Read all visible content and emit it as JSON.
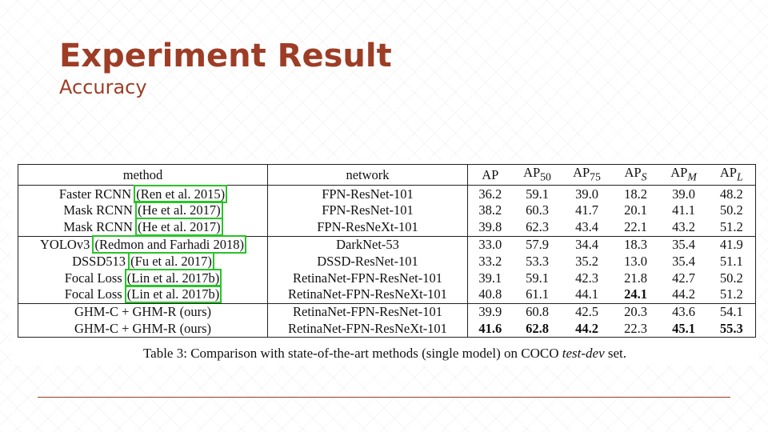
{
  "slide": {
    "title": "Experiment Result",
    "subtitle": "Accuracy"
  },
  "table": {
    "headers": {
      "method": "method",
      "network": "network",
      "ap": "AP",
      "ap50_base": "AP",
      "ap50_sub": "50",
      "ap75_base": "AP",
      "ap75_sub": "75",
      "aps_base": "AP",
      "aps_sub": "S",
      "apm_base": "AP",
      "apm_sub": "M",
      "apl_base": "AP",
      "apl_sub": "L"
    },
    "rows": [
      {
        "method": "Faster RCNN",
        "cite": "Ren et al. 2015",
        "network": "FPN-ResNet-101",
        "ap": "36.2",
        "ap50": "59.1",
        "ap75": "39.0",
        "aps": "18.2",
        "apm": "39.0",
        "apl": "48.2"
      },
      {
        "method": "Mask RCNN",
        "cite": "He et al. 2017",
        "network": "FPN-ResNet-101",
        "ap": "38.2",
        "ap50": "60.3",
        "ap75": "41.7",
        "aps": "20.1",
        "apm": "41.1",
        "apl": "50.2"
      },
      {
        "method": "Mask RCNN",
        "cite": "He et al. 2017",
        "network": "FPN-ResNeXt-101",
        "ap": "39.8",
        "ap50": "62.3",
        "ap75": "43.4",
        "aps": "22.1",
        "apm": "43.2",
        "apl": "51.2"
      },
      {
        "method": "YOLOv3",
        "cite": "Redmon and Farhadi 2018",
        "network": "DarkNet-53",
        "ap": "33.0",
        "ap50": "57.9",
        "ap75": "34.4",
        "aps": "18.3",
        "apm": "35.4",
        "apl": "41.9"
      },
      {
        "method": "DSSD513",
        "cite": "Fu et al. 2017",
        "network": "DSSD-ResNet-101",
        "ap": "33.2",
        "ap50": "53.3",
        "ap75": "35.2",
        "aps": "13.0",
        "apm": "35.4",
        "apl": "51.1"
      },
      {
        "method": "Focal Loss",
        "cite": "Lin et al. 2017b",
        "network": "RetinaNet-FPN-ResNet-101",
        "ap": "39.1",
        "ap50": "59.1",
        "ap75": "42.3",
        "aps": "21.8",
        "apm": "42.7",
        "apl": "50.2"
      },
      {
        "method": "Focal Loss",
        "cite": "Lin et al. 2017b",
        "network": "RetinaNet-FPN-ResNeXt-101",
        "ap": "40.8",
        "ap50": "61.1",
        "ap75": "44.1",
        "aps": "24.1",
        "apm": "44.2",
        "apl": "51.2"
      },
      {
        "method": "GHM-C + GHM-R (ours)",
        "network": "RetinaNet-FPN-ResNet-101",
        "ap": "39.9",
        "ap50": "60.8",
        "ap75": "42.5",
        "aps": "20.3",
        "apm": "43.6",
        "apl": "54.1"
      },
      {
        "method": "GHM-C + GHM-R (ours)",
        "network": "RetinaNet-FPN-ResNeXt-101",
        "ap": "41.6",
        "ap50": "62.8",
        "ap75": "44.2",
        "aps": "22.3",
        "apm": "45.1",
        "apl": "55.3"
      }
    ],
    "caption_prefix": "Table 3: Comparison with state-of-the-art methods (single model) on COCO ",
    "caption_italic": "test-dev",
    "caption_suffix": " set."
  },
  "colors": {
    "accent": "#9e3d26",
    "highlight_box": "#28c428"
  }
}
